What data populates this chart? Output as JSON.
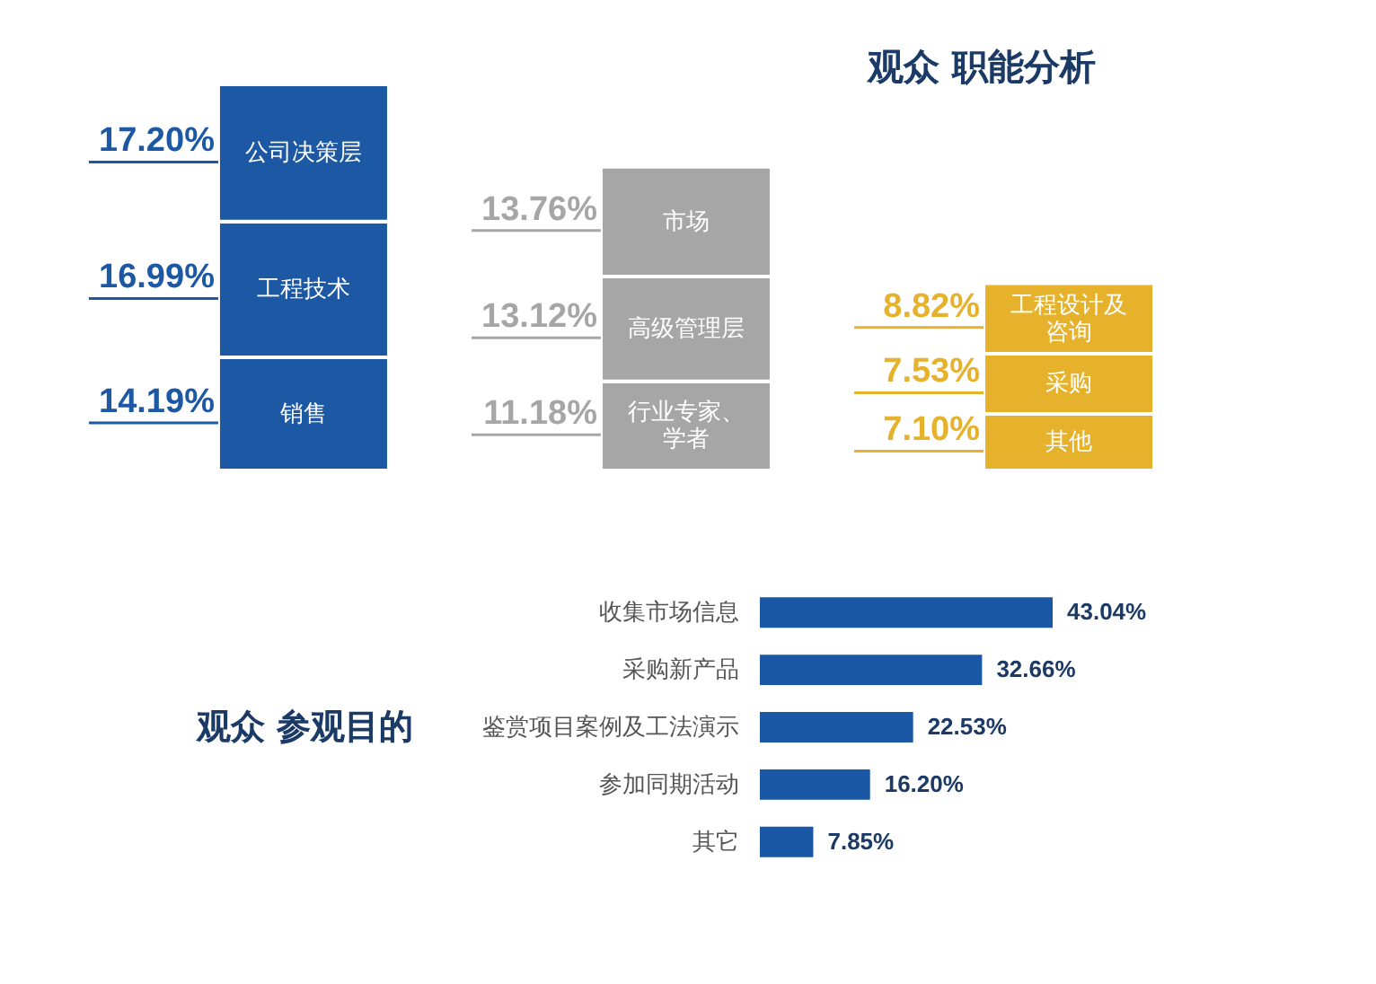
{
  "chart_data": [
    {
      "type": "bar",
      "title": "观众 职能分析",
      "stacked": true,
      "categories": [
        null,
        null,
        null
      ],
      "series": [
        {
          "name": "销售",
          "color": "#1c58a3",
          "values": [
            14.19,
            null,
            null
          ],
          "value_labels": [
            "14.19%",
            null,
            null
          ]
        },
        {
          "name": "工程技术",
          "color": "#1c58a3",
          "values": [
            16.99,
            null,
            null
          ],
          "value_labels": [
            "16.99%",
            null,
            null
          ]
        },
        {
          "name": "公司决策层",
          "color": "#1c58a3",
          "values": [
            17.2,
            null,
            null
          ],
          "value_labels": [
            "17.20%",
            null,
            null
          ]
        },
        {
          "name": "行业专家、学者",
          "color": "#a6a6a6",
          "values": [
            null,
            11.18,
            null
          ],
          "value_labels": [
            null,
            "11.18%",
            null
          ]
        },
        {
          "name": "高级管理层",
          "color": "#a6a6a6",
          "values": [
            null,
            13.12,
            null
          ],
          "value_labels": [
            null,
            "13.12%",
            null
          ]
        },
        {
          "name": "市场",
          "color": "#a6a6a6",
          "values": [
            null,
            13.76,
            null
          ],
          "value_labels": [
            null,
            "13.76%",
            null
          ]
        },
        {
          "name": "其他",
          "color": "#e6b22c",
          "values": [
            null,
            null,
            7.1
          ],
          "value_labels": [
            null,
            null,
            "7.10%"
          ]
        },
        {
          "name": "采购",
          "color": "#e6b22c",
          "values": [
            null,
            null,
            7.53
          ],
          "value_labels": [
            null,
            null,
            "7.53%"
          ]
        },
        {
          "name": "工程设计及咨询",
          "color": "#e6b22c",
          "values": [
            null,
            null,
            8.82
          ],
          "value_labels": [
            null,
            null,
            "8.82%"
          ]
        }
      ]
    },
    {
      "type": "bar",
      "orientation": "horizontal",
      "title": "观众 参观目的",
      "categories": [
        "收集市场信息",
        "采购新产品",
        "鉴赏项目案例及工法演示",
        "参加同期活动",
        "其它"
      ],
      "values": [
        43.04,
        32.66,
        22.53,
        16.2,
        7.85
      ],
      "value_labels": [
        "43.04%",
        "32.66%",
        "22.53%",
        "16.20%",
        "7.85%"
      ],
      "color": "#1a58a6"
    }
  ]
}
